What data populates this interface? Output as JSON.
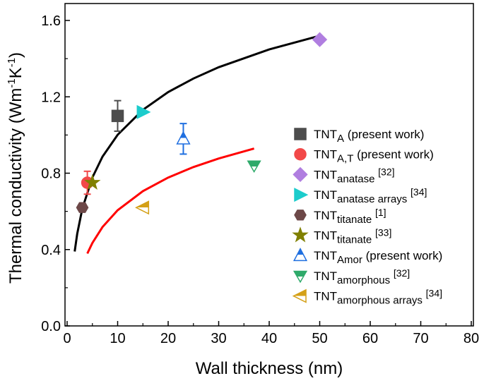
{
  "chart_data": {
    "type": "scatter",
    "xlabel": "Wall thickness (nm)",
    "ylabel": "Thermal conductivity (Wm",
    "ylabel_sup1": "-1",
    "ylabel_mid": "K",
    "ylabel_sup2": "-1",
    "ylabel_end": ")",
    "xlim": [
      0,
      80
    ],
    "ylim": [
      0,
      1.65
    ],
    "xticks": [
      "0",
      "10",
      "20",
      "30",
      "40",
      "50",
      "60",
      "70",
      "80"
    ],
    "yticks": [
      "0.0",
      "0.4",
      "0.8",
      "1.2",
      "1.6"
    ],
    "grid": false,
    "legend_position": "right",
    "series": [
      {
        "base": "TNT",
        "sub": "A",
        "suffix": " (present work)",
        "marker": "square",
        "fill": "full",
        "color": "#4d4d4d",
        "x": [
          10
        ],
        "y": [
          1.1
        ],
        "err": [
          [
            1.02,
            1.18
          ]
        ]
      },
      {
        "base": "TNT",
        "sub": "A,T",
        "suffix": " (present work)",
        "marker": "circle",
        "fill": "full",
        "color": "#f24848",
        "x": [
          4
        ],
        "y": [
          0.75
        ],
        "err": [
          [
            0.69,
            0.81
          ]
        ]
      },
      {
        "base": "TNT",
        "sub": "anatase",
        "suffix": " [32]",
        "marker": "diamond",
        "fill": "full",
        "color": "#b07ee0",
        "x": [
          50
        ],
        "y": [
          1.5
        ]
      },
      {
        "base": "TNT",
        "sub": "anatase arrays",
        "suffix": " [34]",
        "marker": "triangle-right",
        "fill": "full",
        "color": "#1ccccc",
        "x": [
          15
        ],
        "y": [
          1.12
        ]
      },
      {
        "base": "TNT",
        "sub": "titanate",
        "suffix": " [1]",
        "marker": "hexagon",
        "fill": "full",
        "color": "#6d4848",
        "x": [
          3
        ],
        "y": [
          0.62
        ]
      },
      {
        "base": "TNT",
        "sub": "titanate",
        "suffix": " [33]",
        "marker": "star",
        "fill": "full",
        "color": "#808000",
        "x": [
          5
        ],
        "y": [
          0.75
        ]
      },
      {
        "base": "TNT",
        "sub": "Amor",
        "suffix": " (present work)",
        "marker": "triangle-up",
        "fill": "top",
        "color": "#1f6fe0",
        "x": [
          23
        ],
        "y": [
          0.98
        ],
        "err": [
          [
            0.9,
            1.06
          ]
        ]
      },
      {
        "base": "TNT",
        "sub": "amorphous",
        "suffix": " [32]",
        "marker": "triangle-down",
        "fill": "top",
        "color": "#2eaa6a",
        "x": [
          37
        ],
        "y": [
          0.84
        ]
      },
      {
        "base": "TNT",
        "sub": "amorphous arrays",
        "suffix": " [34]",
        "marker": "triangle-left",
        "fill": "top",
        "color": "#d4a017",
        "x": [
          15
        ],
        "y": [
          0.62
        ]
      }
    ],
    "curves": [
      {
        "color": "#000000",
        "x": [
          1.5,
          2,
          3,
          5,
          7,
          10,
          15,
          20,
          25,
          30,
          40,
          50
        ],
        "y": [
          0.39,
          0.483,
          0.614,
          0.778,
          0.887,
          1.001,
          1.132,
          1.225,
          1.296,
          1.355,
          1.448,
          1.52
        ]
      },
      {
        "color": "#ff0000",
        "x": [
          4,
          5,
          7,
          10,
          15,
          20,
          25,
          30,
          37
        ],
        "y": [
          0.379,
          0.435,
          0.518,
          0.606,
          0.706,
          0.777,
          0.832,
          0.877,
          0.929
        ]
      }
    ]
  }
}
